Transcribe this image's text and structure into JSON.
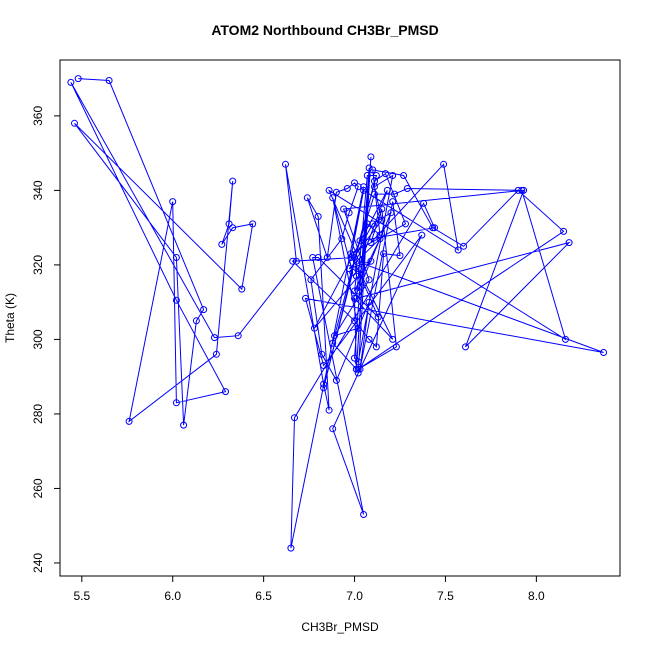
{
  "chart_data": {
    "type": "line",
    "title": "ATOM2 Northbound CH3Br_PMSD",
    "xlabel": "CH3Br_PMSD",
    "ylabel": "Theta (K)",
    "xlim": [
      5.38,
      8.46
    ],
    "ylim": [
      236.5,
      375.0
    ],
    "xticks": [
      5.5,
      6.0,
      6.5,
      7.0,
      7.5,
      8.0
    ],
    "yticks": [
      240,
      260,
      280,
      300,
      320,
      340,
      360
    ],
    "color": "#0000ff",
    "grid": false,
    "series": [
      {
        "marker": "open-circle",
        "x": [
          5.48,
          5.65,
          6.17,
          6.13,
          6.06,
          6.02,
          5.46,
          6.38,
          6.44,
          6.33,
          6.27,
          6.31,
          6.33,
          6.24,
          5.76,
          6.0,
          6.02,
          6.29,
          6.02,
          5.44,
          6.23,
          6.36,
          6.68,
          6.62,
          6.83,
          6.86,
          6.8,
          6.74,
          6.85,
          6.9,
          6.96,
          7.0,
          7.02,
          6.97,
          6.93,
          6.76,
          6.82,
          6.9,
          7.08,
          7.03,
          7.21,
          7.25,
          7.16,
          7.12,
          7.08,
          7.0,
          6.66,
          7.0,
          7.1,
          7.2,
          7.02,
          7.07,
          7.14,
          7.1,
          7.27,
          7.43,
          7.6,
          7.9,
          8.15,
          7.02,
          7.23,
          7.15,
          7.09,
          7.49,
          7.57,
          7.05,
          6.98,
          7.05,
          6.65,
          6.67,
          7.38,
          7.44,
          7.03,
          7.11,
          7.22,
          7.29,
          7.93,
          7.61,
          8.18,
          7.01,
          7.07,
          7.12,
          6.88,
          7.01,
          7.0,
          7.21,
          7.02,
          7.18,
          6.78,
          7.09,
          6.97,
          7.14,
          7.0,
          7.01,
          7.01,
          8.37,
          6.73,
          6.83,
          7.37,
          6.88,
          7.05,
          6.77,
          6.8,
          7.13,
          6.98,
          7.28,
          7.17,
          7.11,
          6.83,
          6.99,
          6.88,
          7.02,
          6.89,
          7.08,
          6.94,
          7.92,
          8.16,
          6.86,
          7.01,
          7.15,
          7.11,
          7.21,
          7.02,
          7.0,
          7.08,
          7.01,
          7.09,
          7.02
        ],
        "y": [
          370,
          369.5,
          308,
          305,
          277,
          322,
          358,
          313.5,
          331,
          330,
          325.5,
          331,
          342.5,
          296,
          278,
          337,
          283,
          286,
          310.5,
          369,
          300.5,
          301,
          321,
          347,
          288,
          281,
          333,
          338,
          322,
          339.5,
          340.5,
          342,
          341,
          334,
          327,
          316,
          296,
          289,
          310,
          292,
          337,
          322.5,
          323,
          298,
          300,
          305,
          321,
          322,
          331,
          334,
          313,
          331,
          328,
          345.5,
          344,
          330,
          325,
          340,
          329,
          292,
          298,
          335,
          326,
          347,
          324,
          340,
          322,
          341,
          244,
          279,
          336.5,
          330,
          326.5,
          339,
          339,
          340.5,
          340,
          298,
          326,
          311,
          344,
          344,
          299,
          292,
          311,
          300,
          319,
          340,
          303,
          321,
          319,
          327,
          313,
          317,
          321,
          296.5,
          311,
          293,
          328,
          276,
          253,
          322,
          322,
          306,
          323,
          331,
          344.5,
          342.5,
          287,
          318,
          338,
          303,
          301,
          316,
          335,
          340,
          300,
          340,
          323,
          332,
          341,
          344,
          294,
          295,
          346,
          292,
          349,
          291
        ]
      }
    ]
  }
}
